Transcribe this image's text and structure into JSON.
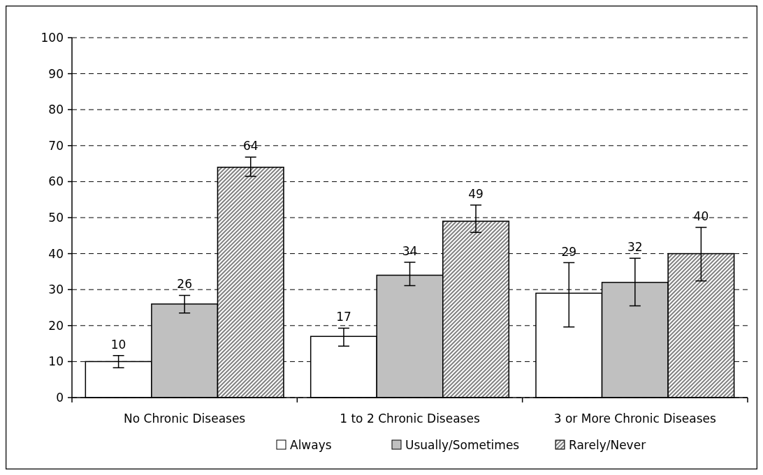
{
  "chart_data": {
    "type": "bar",
    "categories": [
      "No Chronic Diseases",
      "1 to 2 Chronic Diseases",
      "3 or More Chronic Diseases"
    ],
    "series": [
      {
        "name": "Always",
        "color": "#ffffff",
        "values": [
          10,
          17,
          29
        ],
        "errors": [
          [
            8.3,
            11.7
          ],
          [
            14.3,
            19.3
          ],
          [
            19.6,
            37.5
          ]
        ]
      },
      {
        "name": "Usually/Sometimes",
        "color": "#c0c0c0",
        "values": [
          26,
          34,
          32
        ],
        "errors": [
          [
            23.5,
            28.4
          ],
          [
            31.1,
            37.6
          ],
          [
            25.5,
            38.7
          ]
        ]
      },
      {
        "name": "Rarely/Never",
        "color": "#808080",
        "values": [
          64,
          49,
          40
        ],
        "errors": [
          [
            61.5,
            66.8
          ],
          [
            45.9,
            53.5
          ],
          [
            32.4,
            47.3
          ]
        ]
      }
    ],
    "ylim": [
      0,
      100
    ],
    "yticks": [
      0,
      10,
      20,
      30,
      40,
      50,
      60,
      70,
      80,
      90,
      100
    ],
    "grid": "y",
    "legend": "bottom",
    "data_labels": true
  }
}
